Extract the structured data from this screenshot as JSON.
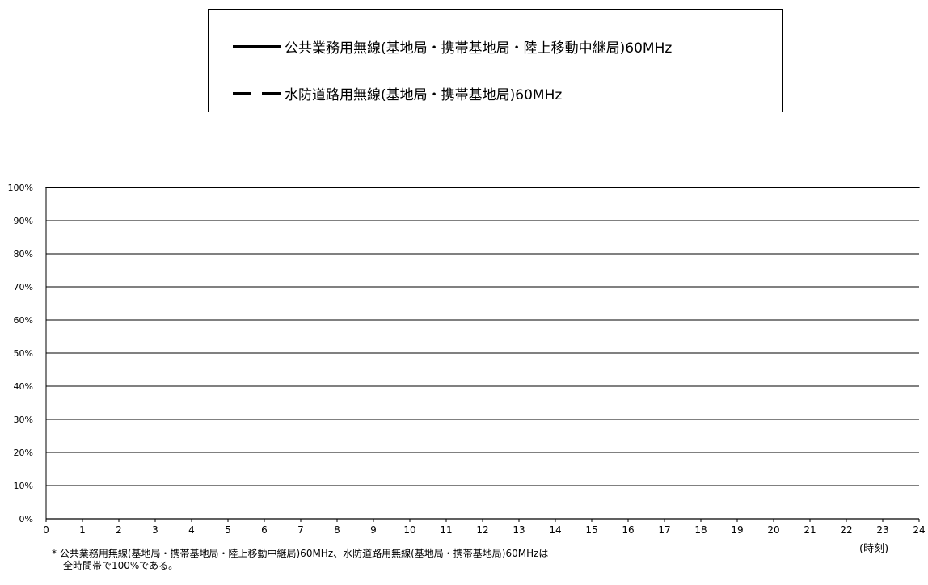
{
  "legend": {
    "items": [
      {
        "label": "公共業務用無線(基地局・携帯基地局・陸上移動中継局)60MHz",
        "style": "solid"
      },
      {
        "label": "水防道路用無線(基地局・携帯基地局)60MHz",
        "style": "dashed"
      }
    ]
  },
  "chart_data": {
    "type": "line",
    "x": [
      0,
      1,
      2,
      3,
      4,
      5,
      6,
      7,
      8,
      9,
      10,
      11,
      12,
      13,
      14,
      15,
      16,
      17,
      18,
      19,
      20,
      21,
      22,
      23,
      24
    ],
    "x_tick_labels": [
      "0",
      "1",
      "2",
      "3",
      "4",
      "5",
      "6",
      "7",
      "8",
      "9",
      "10",
      "11",
      "12",
      "13",
      "14",
      "15",
      "16",
      "17",
      "18",
      "19",
      "20",
      "21",
      "22",
      "23",
      "24"
    ],
    "xlabel": "(時刻)",
    "ylabel": "",
    "ylim": [
      0,
      100
    ],
    "y_ticks": [
      0,
      10,
      20,
      30,
      40,
      50,
      60,
      70,
      80,
      90,
      100
    ],
    "y_tick_labels": [
      "0%",
      "10%",
      "20%",
      "30%",
      "40%",
      "50%",
      "60%",
      "70%",
      "80%",
      "90%",
      "100%"
    ],
    "grid": "horizontal",
    "series": [
      {
        "name": "公共業務用無線(基地局・携帯基地局・陸上移動中継局)60MHz",
        "style": "solid",
        "values": [
          100,
          100,
          100,
          100,
          100,
          100,
          100,
          100,
          100,
          100,
          100,
          100,
          100,
          100,
          100,
          100,
          100,
          100,
          100,
          100,
          100,
          100,
          100,
          100,
          100
        ]
      },
      {
        "name": "水防道路用無線(基地局・携帯基地局)60MHz",
        "style": "dashed",
        "values": [
          100,
          100,
          100,
          100,
          100,
          100,
          100,
          100,
          100,
          100,
          100,
          100,
          100,
          100,
          100,
          100,
          100,
          100,
          100,
          100,
          100,
          100,
          100,
          100,
          100
        ]
      }
    ]
  },
  "notes": {
    "line1": "* 公共業務用無線(基地局・携帯基地局・陸上移動中継局)60MHz、水防道路用無線(基地局・携帯基地局)60MHzは",
    "line2": "全時間帯で100%である。"
  },
  "colors": {
    "line": "#000000",
    "grid": "#000000"
  }
}
